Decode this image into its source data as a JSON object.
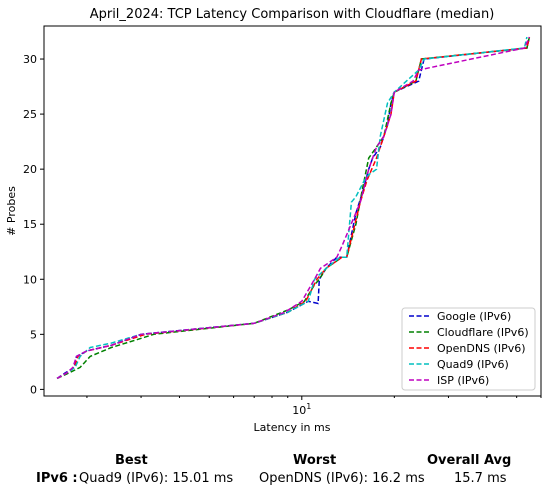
{
  "chart_data": {
    "type": "line",
    "title": "April_2024: TCP Latency Comparison with Cloudflare (median)",
    "xlabel": "Latency in ms",
    "ylabel": "# Probes",
    "xscale": "log",
    "xlim": [
      1.45,
      60
    ],
    "ylim": [
      -0.6,
      33
    ],
    "xticks": [
      {
        "value": 10,
        "base": "10",
        "exp": "1"
      }
    ],
    "yticks": [
      0,
      5,
      10,
      15,
      20,
      25,
      30
    ],
    "grid": false,
    "legend": "lower-right",
    "series": [
      {
        "name": "Google (IPv6)",
        "color": "#0000cc",
        "x": [
          1.6,
          1.7,
          1.82,
          1.85,
          2.0,
          2.4,
          3.0,
          7.0,
          9.0,
          10.5,
          11.3,
          11.4,
          12.0,
          13.0,
          14.0,
          15.0,
          15.8,
          16.5,
          17.0,
          18.0,
          19.0,
          19.5,
          20.0,
          24.0,
          25.0,
          54.0,
          55.0
        ],
        "y": [
          1,
          1.5,
          2,
          3,
          3.5,
          4,
          5,
          6,
          7,
          8,
          7.8,
          10,
          11,
          12,
          12,
          16,
          18,
          20,
          21,
          22,
          24,
          26,
          27,
          28,
          30,
          31,
          32
        ]
      },
      {
        "name": "Cloudflare (IPv6)",
        "color": "#008000",
        "x": [
          1.6,
          1.75,
          1.9,
          2.05,
          2.4,
          2.9,
          3.3,
          7.0,
          9.0,
          10.2,
          11.0,
          11.4,
          12.0,
          13.5,
          14.0,
          15.0,
          15.7,
          16.5,
          17.5,
          18.5,
          19.5,
          20.0,
          23.5,
          24.5,
          54.0,
          55.0
        ],
        "y": [
          1,
          1.5,
          2,
          3,
          3.8,
          4.5,
          5,
          6,
          7.2,
          8,
          9.5,
          10,
          11,
          12,
          12,
          15,
          18,
          21,
          22,
          23,
          26,
          27,
          28,
          30,
          31,
          32
        ]
      },
      {
        "name": "OpenDNS (IPv6)",
        "color": "#ff0000",
        "x": [
          1.6,
          1.72,
          1.82,
          1.87,
          2.0,
          2.4,
          3.1,
          7.0,
          9.0,
          10.3,
          11.2,
          12.0,
          13.5,
          14.0,
          15.5,
          16.3,
          17.5,
          18.5,
          19.5,
          20.0,
          23.5,
          24.5,
          54.0,
          55.0
        ],
        "y": [
          1,
          1.5,
          2,
          3,
          3.5,
          4,
          5,
          6,
          7,
          8,
          10,
          11,
          12,
          12,
          17,
          19,
          21,
          23,
          25,
          27,
          28,
          30,
          31,
          32
        ]
      },
      {
        "name": "Quad9 (IPv6)",
        "color": "#00bfbf",
        "x": [
          1.6,
          1.72,
          1.83,
          1.9,
          2.05,
          2.4,
          3.0,
          7.0,
          9.0,
          10.5,
          11.0,
          12.0,
          13.3,
          14.0,
          14.5,
          15.0,
          16.0,
          16.5,
          17.5,
          18.0,
          19.0,
          20.0,
          24.0,
          25.0,
          53.0,
          54.0
        ],
        "y": [
          1,
          1.5,
          2,
          3,
          3.8,
          4.2,
          5,
          6,
          7,
          8,
          10,
          11,
          12,
          12,
          17,
          17.5,
          19,
          19.5,
          20,
          23,
          26,
          27,
          29,
          30,
          31,
          32
        ]
      },
      {
        "name": "ISP (IPv6)",
        "color": "#bf00bf",
        "x": [
          1.6,
          1.72,
          1.8,
          1.85,
          2.0,
          2.4,
          3.0,
          7.0,
          8.8,
          10.0,
          11.0,
          11.5,
          13.0,
          13.5,
          15.5,
          16.5,
          17.5,
          18.5,
          19.5,
          20.0,
          23.0,
          24.0,
          53.0,
          55.0
        ],
        "y": [
          1,
          1.5,
          2,
          3,
          3.5,
          4,
          5,
          6,
          7,
          8,
          10,
          11,
          12,
          13,
          17,
          20,
          22,
          23,
          25,
          27,
          28,
          29,
          31,
          32
        ]
      }
    ]
  },
  "summary": {
    "best_header": "Best",
    "worst_header": "Worst",
    "avg_header": "Overall Avg",
    "row_label": "IPv6 :",
    "best_value": "Quad9 (IPv6): 15.01 ms",
    "worst_value": "OpenDNS (IPv6): 16.2 ms",
    "avg_value": "15.7 ms"
  }
}
